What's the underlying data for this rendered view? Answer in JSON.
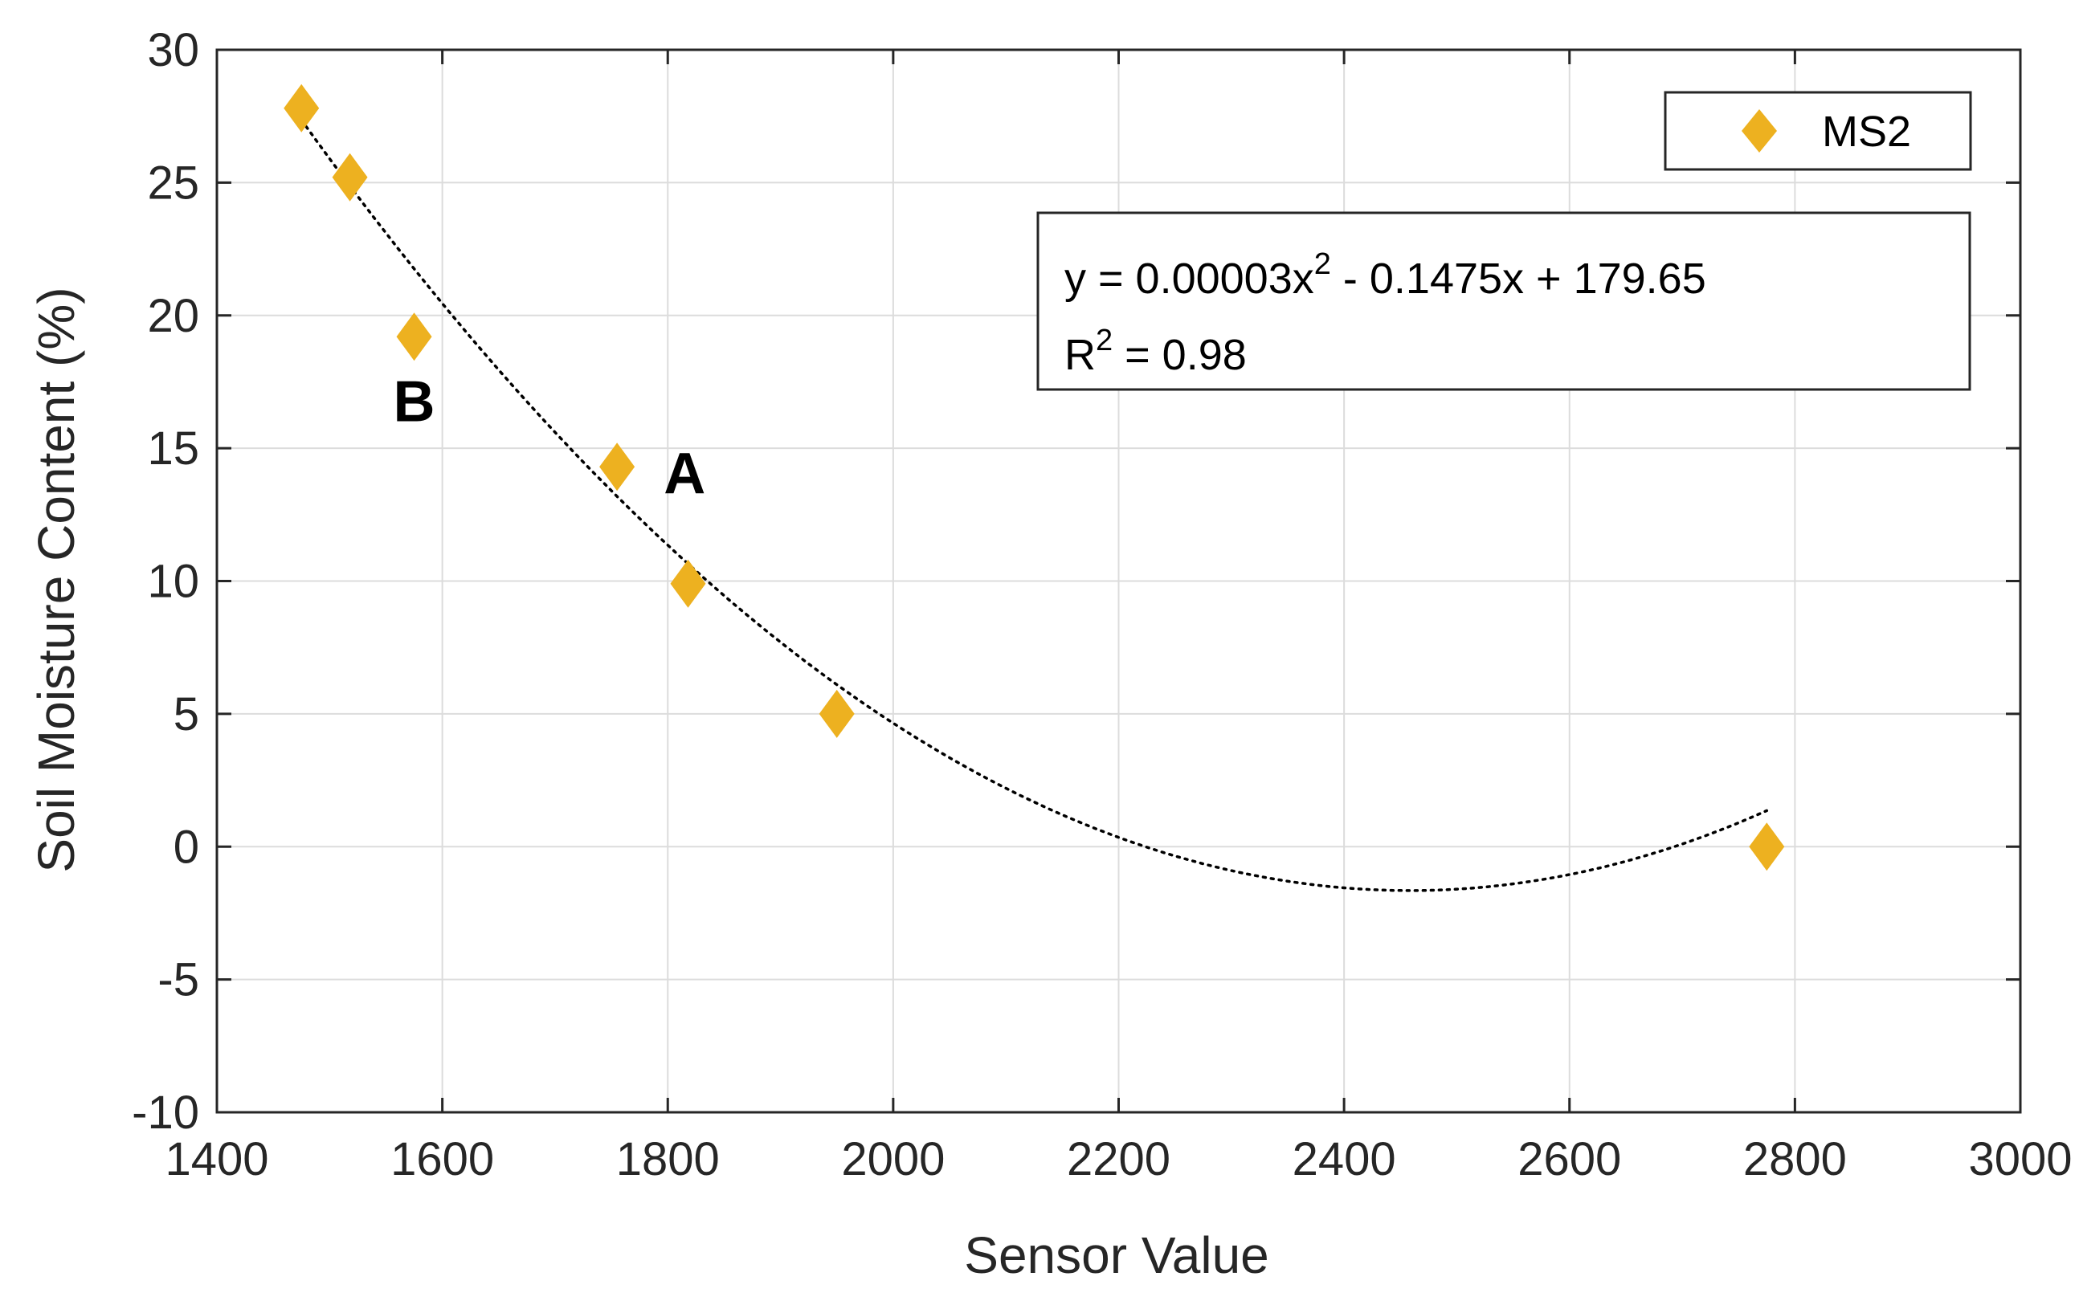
{
  "chart_data": {
    "type": "scatter",
    "xlabel": "Sensor Value",
    "ylabel": "Soil Moisture Content (%)",
    "xlim": [
      1400,
      3000
    ],
    "ylim": [
      -10,
      30
    ],
    "xticks": [
      1400,
      1600,
      1800,
      2000,
      2200,
      2400,
      2600,
      2800,
      3000
    ],
    "yticks": [
      -10,
      -5,
      0,
      5,
      10,
      15,
      20,
      25,
      30
    ],
    "grid": true,
    "legend_position": "top-right",
    "series": [
      {
        "name": "MS2",
        "color": "#EDB120",
        "marker": "diamond",
        "x": [
          1475,
          1518,
          1575,
          1755,
          1818,
          1950,
          2775
        ],
        "y": [
          27.8,
          25.2,
          19.2,
          14.3,
          9.9,
          5.0,
          0.0
        ]
      }
    ],
    "trendline": {
      "type": "polynomial",
      "style": "dotted",
      "coefficients": [
        3e-05,
        -0.1475,
        179.65
      ],
      "x_range": [
        1475,
        2775
      ]
    },
    "equation_box": {
      "line1_prefix": "y   = 0.00003x",
      "line1_sup": "2",
      "line1_suffix": " - 0.1475x + 179.65",
      "line2_prefix": "R",
      "line2_sup": "2",
      "line2_suffix": " = 0.98"
    },
    "annotations": [
      {
        "text": "B",
        "x": 1575,
        "y": 16.8
      },
      {
        "text": "A",
        "x": 1815,
        "y": 14.1
      }
    ]
  }
}
